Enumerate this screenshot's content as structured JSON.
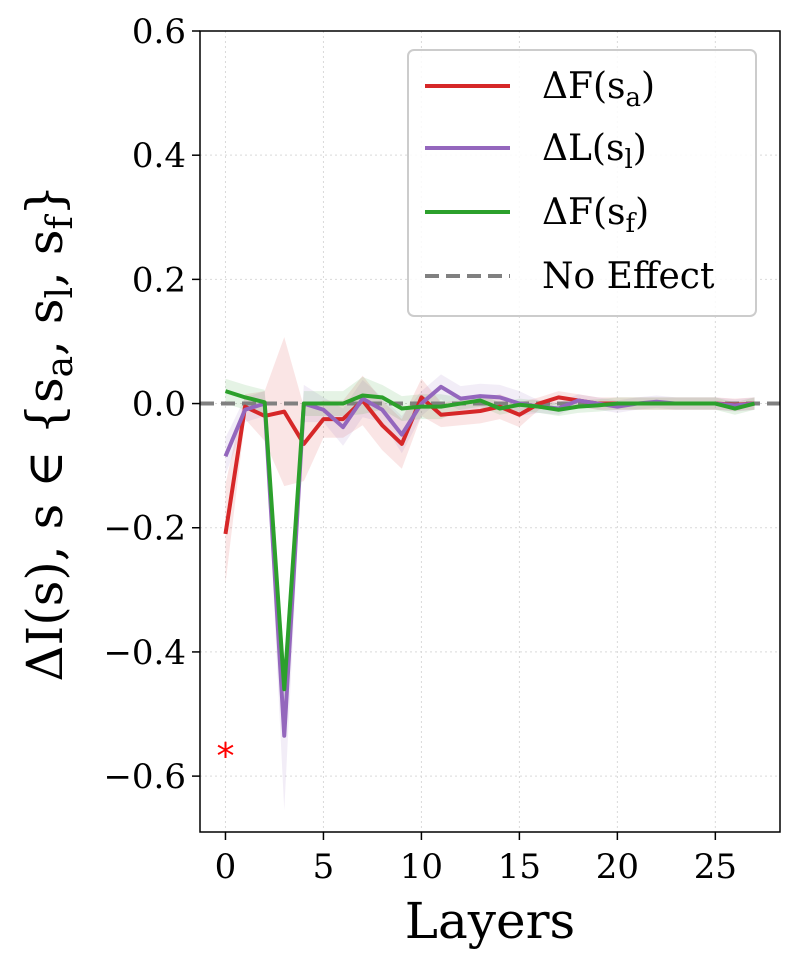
{
  "chart_data": {
    "type": "line",
    "xlabel": "Layers",
    "ylabel": "ΔI(s),  s ∈ {s_a, s_l, s_f}",
    "xlim": [
      -1.3,
      28.3
    ],
    "ylim": [
      -0.69,
      0.6
    ],
    "x_ticks": [
      0,
      5,
      10,
      15,
      20,
      25
    ],
    "x_tick_labels": [
      "0",
      "5",
      "10",
      "15",
      "20",
      "25"
    ],
    "y_ticks": [
      0.6,
      0.4,
      0.2,
      0.0,
      -0.2,
      -0.4,
      -0.6
    ],
    "y_tick_labels": [
      "0.6",
      "0.4",
      "0.2",
      "0.0",
      "−0.2",
      "−0.4",
      "−0.6"
    ],
    "grid": true,
    "legend_position": "top-right",
    "x": [
      0,
      1,
      2,
      3,
      4,
      5,
      6,
      7,
      8,
      9,
      10,
      11,
      12,
      13,
      14,
      15,
      16,
      17,
      18,
      19,
      20,
      21,
      22,
      23,
      24,
      25,
      26,
      27
    ],
    "series": [
      {
        "name": "ΔF(s_a)",
        "legend_base": "ΔF(s",
        "legend_sub": "a",
        "color": "#d62728",
        "values": [
          -0.21,
          -0.005,
          -0.02,
          -0.013,
          -0.065,
          -0.025,
          -0.025,
          0.005,
          -0.035,
          -0.065,
          0.01,
          -0.018,
          -0.015,
          -0.012,
          -0.005,
          -0.018,
          0.0,
          0.01,
          0.005,
          0.0,
          0.0,
          0.0,
          0.0,
          0.0,
          0.0,
          0.0,
          -0.002,
          0.0
        ],
        "band": [
          0.08,
          0.02,
          0.04,
          0.12,
          0.06,
          0.03,
          0.03,
          0.04,
          0.04,
          0.04,
          0.03,
          0.02,
          0.02,
          0.02,
          0.02,
          0.02,
          0.01,
          0.01,
          0.01,
          0.01,
          0.01,
          0.01,
          0.01,
          0.01,
          0.01,
          0.01,
          0.01,
          0.01
        ]
      },
      {
        "name": "ΔL(s_l)",
        "legend_base": "ΔL(s",
        "legend_sub": "l",
        "color": "#9467bd",
        "values": [
          -0.085,
          -0.01,
          0.0,
          -0.535,
          0.0,
          -0.01,
          -0.038,
          0.008,
          -0.01,
          -0.05,
          0.0,
          0.027,
          0.008,
          0.012,
          0.01,
          0.0,
          -0.005,
          -0.008,
          0.005,
          0.0,
          -0.005,
          0.0,
          0.003,
          0.0,
          0.0,
          0.0,
          -0.003,
          0.0
        ],
        "band": [
          0.03,
          0.02,
          0.02,
          0.12,
          0.03,
          0.02,
          0.03,
          0.03,
          0.02,
          0.03,
          0.02,
          0.02,
          0.02,
          0.02,
          0.02,
          0.02,
          0.01,
          0.01,
          0.01,
          0.01,
          0.01,
          0.01,
          0.01,
          0.01,
          0.01,
          0.01,
          0.01,
          0.01
        ]
      },
      {
        "name": "ΔF(s_f)",
        "legend_base": "ΔF(s",
        "legend_sub": "f",
        "color": "#2ca02c",
        "values": [
          0.02,
          0.01,
          0.002,
          -0.46,
          0.0,
          0.0,
          0.0,
          0.013,
          0.01,
          -0.008,
          -0.005,
          -0.005,
          0.0,
          0.005,
          -0.008,
          -0.002,
          -0.005,
          -0.01,
          -0.005,
          -0.003,
          0.0,
          0.0,
          0.0,
          0.0,
          0.0,
          0.0,
          -0.008,
          0.0
        ],
        "band": [
          0.02,
          0.02,
          0.02,
          0.05,
          0.02,
          0.02,
          0.02,
          0.03,
          0.02,
          0.02,
          0.02,
          0.02,
          0.01,
          0.01,
          0.01,
          0.01,
          0.01,
          0.01,
          0.01,
          0.01,
          0.01,
          0.01,
          0.01,
          0.01,
          0.01,
          0.01,
          0.01,
          0.01
        ]
      }
    ],
    "reference_line": {
      "name": "No Effect",
      "y": 0.0,
      "color": "#808080",
      "style": "dashed"
    },
    "annotation": {
      "text": "*",
      "x": 0,
      "y": -0.555,
      "color": "#ff0000"
    }
  }
}
